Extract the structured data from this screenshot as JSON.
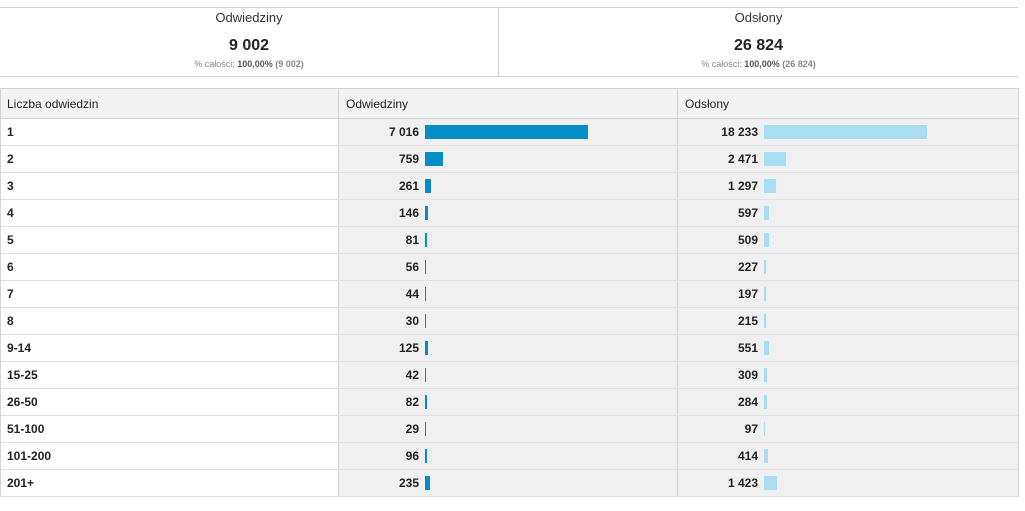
{
  "summary": {
    "visits": {
      "title": "Odwiedziny",
      "value": "9 002",
      "pct_label": "% całości:",
      "pct": "100,00%",
      "total": "(9 002)"
    },
    "pageviews": {
      "title": "Odsłony",
      "value": "26 824",
      "pct_label": "% całości:",
      "pct": "100,00%",
      "total": "(26 824)"
    }
  },
  "table": {
    "headers": [
      "Liczba odwiedzin",
      "Odwiedziny",
      "Odsłony"
    ],
    "colors": {
      "visits_bar": "#058dc7",
      "pageviews_bar": "#a9ddf3"
    },
    "rows": [
      {
        "label": "1",
        "visits": "7 016",
        "visits_n": 7016,
        "pageviews": "18 233",
        "pageviews_n": 18233
      },
      {
        "label": "2",
        "visits": "759",
        "visits_n": 759,
        "pageviews": "2 471",
        "pageviews_n": 2471
      },
      {
        "label": "3",
        "visits": "261",
        "visits_n": 261,
        "pageviews": "1 297",
        "pageviews_n": 1297
      },
      {
        "label": "4",
        "visits": "146",
        "visits_n": 146,
        "pageviews": "597",
        "pageviews_n": 597
      },
      {
        "label": "5",
        "visits": "81",
        "visits_n": 81,
        "pageviews": "509",
        "pageviews_n": 509
      },
      {
        "label": "6",
        "visits": "56",
        "visits_n": 56,
        "pageviews": "227",
        "pageviews_n": 227
      },
      {
        "label": "7",
        "visits": "44",
        "visits_n": 44,
        "pageviews": "197",
        "pageviews_n": 197
      },
      {
        "label": "8",
        "visits": "30",
        "visits_n": 30,
        "pageviews": "215",
        "pageviews_n": 215
      },
      {
        "label": "9-14",
        "visits": "125",
        "visits_n": 125,
        "pageviews": "551",
        "pageviews_n": 551
      },
      {
        "label": "15-25",
        "visits": "42",
        "visits_n": 42,
        "pageviews": "309",
        "pageviews_n": 309
      },
      {
        "label": "26-50",
        "visits": "82",
        "visits_n": 82,
        "pageviews": "284",
        "pageviews_n": 284
      },
      {
        "label": "51-100",
        "visits": "29",
        "visits_n": 29,
        "pageviews": "97",
        "pageviews_n": 97
      },
      {
        "label": "101-200",
        "visits": "96",
        "visits_n": 96,
        "pageviews": "414",
        "pageviews_n": 414
      },
      {
        "label": "201+",
        "visits": "235",
        "visits_n": 235,
        "pageviews": "1 423",
        "pageviews_n": 1423
      }
    ]
  }
}
